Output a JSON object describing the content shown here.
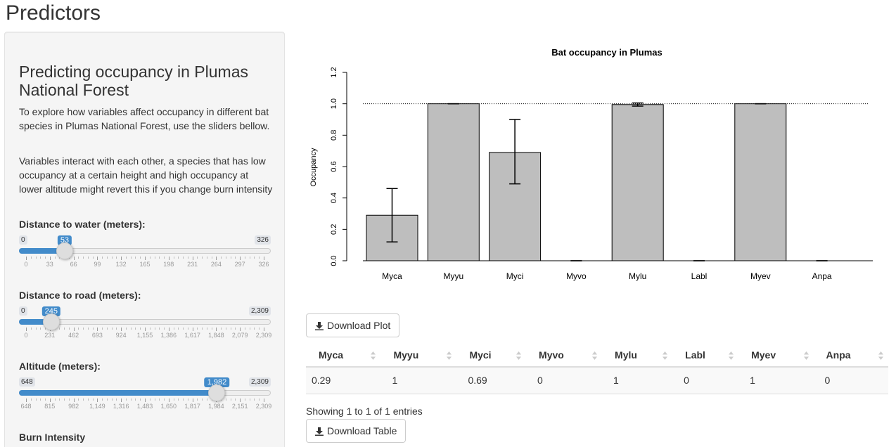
{
  "page": {
    "title": "Predictors"
  },
  "sidebar": {
    "heading": "Predicting occupancy in Plumas National Forest",
    "paragraph1": "To explore how variables affect occupancy in different bat species in Plumas National Forest, use the sliders bellow.",
    "paragraph2": "Variables interact with each other, a species that has low occupancy at a certain height and high occupancy at lower altitude might revert this if you change burn intensity",
    "sliders": [
      {
        "label": "Distance to water (meters):",
        "min": 0,
        "max": 326,
        "value": 53,
        "min_label": "0",
        "max_label": "326",
        "value_label": "53",
        "ticks": [
          "0",
          "33",
          "66",
          "99",
          "132",
          "165",
          "198",
          "231",
          "264",
          "297",
          "326"
        ]
      },
      {
        "label": "Distance to road (meters):",
        "min": 0,
        "max": 2309,
        "value": 245,
        "min_label": "0",
        "max_label": "2,309",
        "value_label": "245",
        "ticks": [
          "0",
          "231",
          "462",
          "693",
          "924",
          "1,155",
          "1,386",
          "1,617",
          "1,848",
          "2,079",
          "2,309"
        ]
      },
      {
        "label": "Altitude (meters):",
        "min": 648,
        "max": 2309,
        "value": 1982,
        "min_label": "648",
        "max_label": "2,309",
        "value_label": "1,982",
        "ticks": [
          "648",
          "815",
          "982",
          "1,149",
          "1,316",
          "1,483",
          "1,650",
          "1,817",
          "1,984",
          "2,151",
          "2,309"
        ]
      }
    ],
    "burn_label": "Burn Intensity"
  },
  "chart_data": {
    "type": "bar",
    "title": "Bat occupancy in Plumas",
    "ylabel": "Occupancy",
    "xlabel": "",
    "categories": [
      "Myca",
      "Myyu",
      "Myci",
      "Myvo",
      "Mylu",
      "Labl",
      "Myev",
      "Anpa"
    ],
    "values": [
      0.29,
      1,
      0.69,
      0,
      0.995,
      0,
      1,
      0
    ],
    "error_low": [
      0.12,
      1,
      0.49,
      0,
      0.985,
      0,
      1,
      0
    ],
    "error_high": [
      0.46,
      1,
      0.9,
      0,
      1.005,
      0,
      1,
      0
    ],
    "ylim": [
      0,
      1.2
    ],
    "yticks": [
      "0.0",
      "0.2",
      "0.4",
      "0.6",
      "0.8",
      "1.0",
      "1.2"
    ],
    "reference_line": 1.0,
    "bar_color": "#bebebe"
  },
  "buttons": {
    "download_plot": "Download Plot",
    "download_table": "Download Table"
  },
  "table": {
    "columns": [
      "Myca",
      "Myyu",
      "Myci",
      "Myvo",
      "Mylu",
      "Labl",
      "Myev",
      "Anpa"
    ],
    "rows": [
      [
        "0.29",
        "1",
        "0.69",
        "0",
        "1",
        "0",
        "1",
        "0"
      ]
    ],
    "info": "Showing 1 to 1 of 1 entries"
  },
  "colors": {
    "accent": "#428bca",
    "sidebar_bg": "#f5f5f5"
  }
}
